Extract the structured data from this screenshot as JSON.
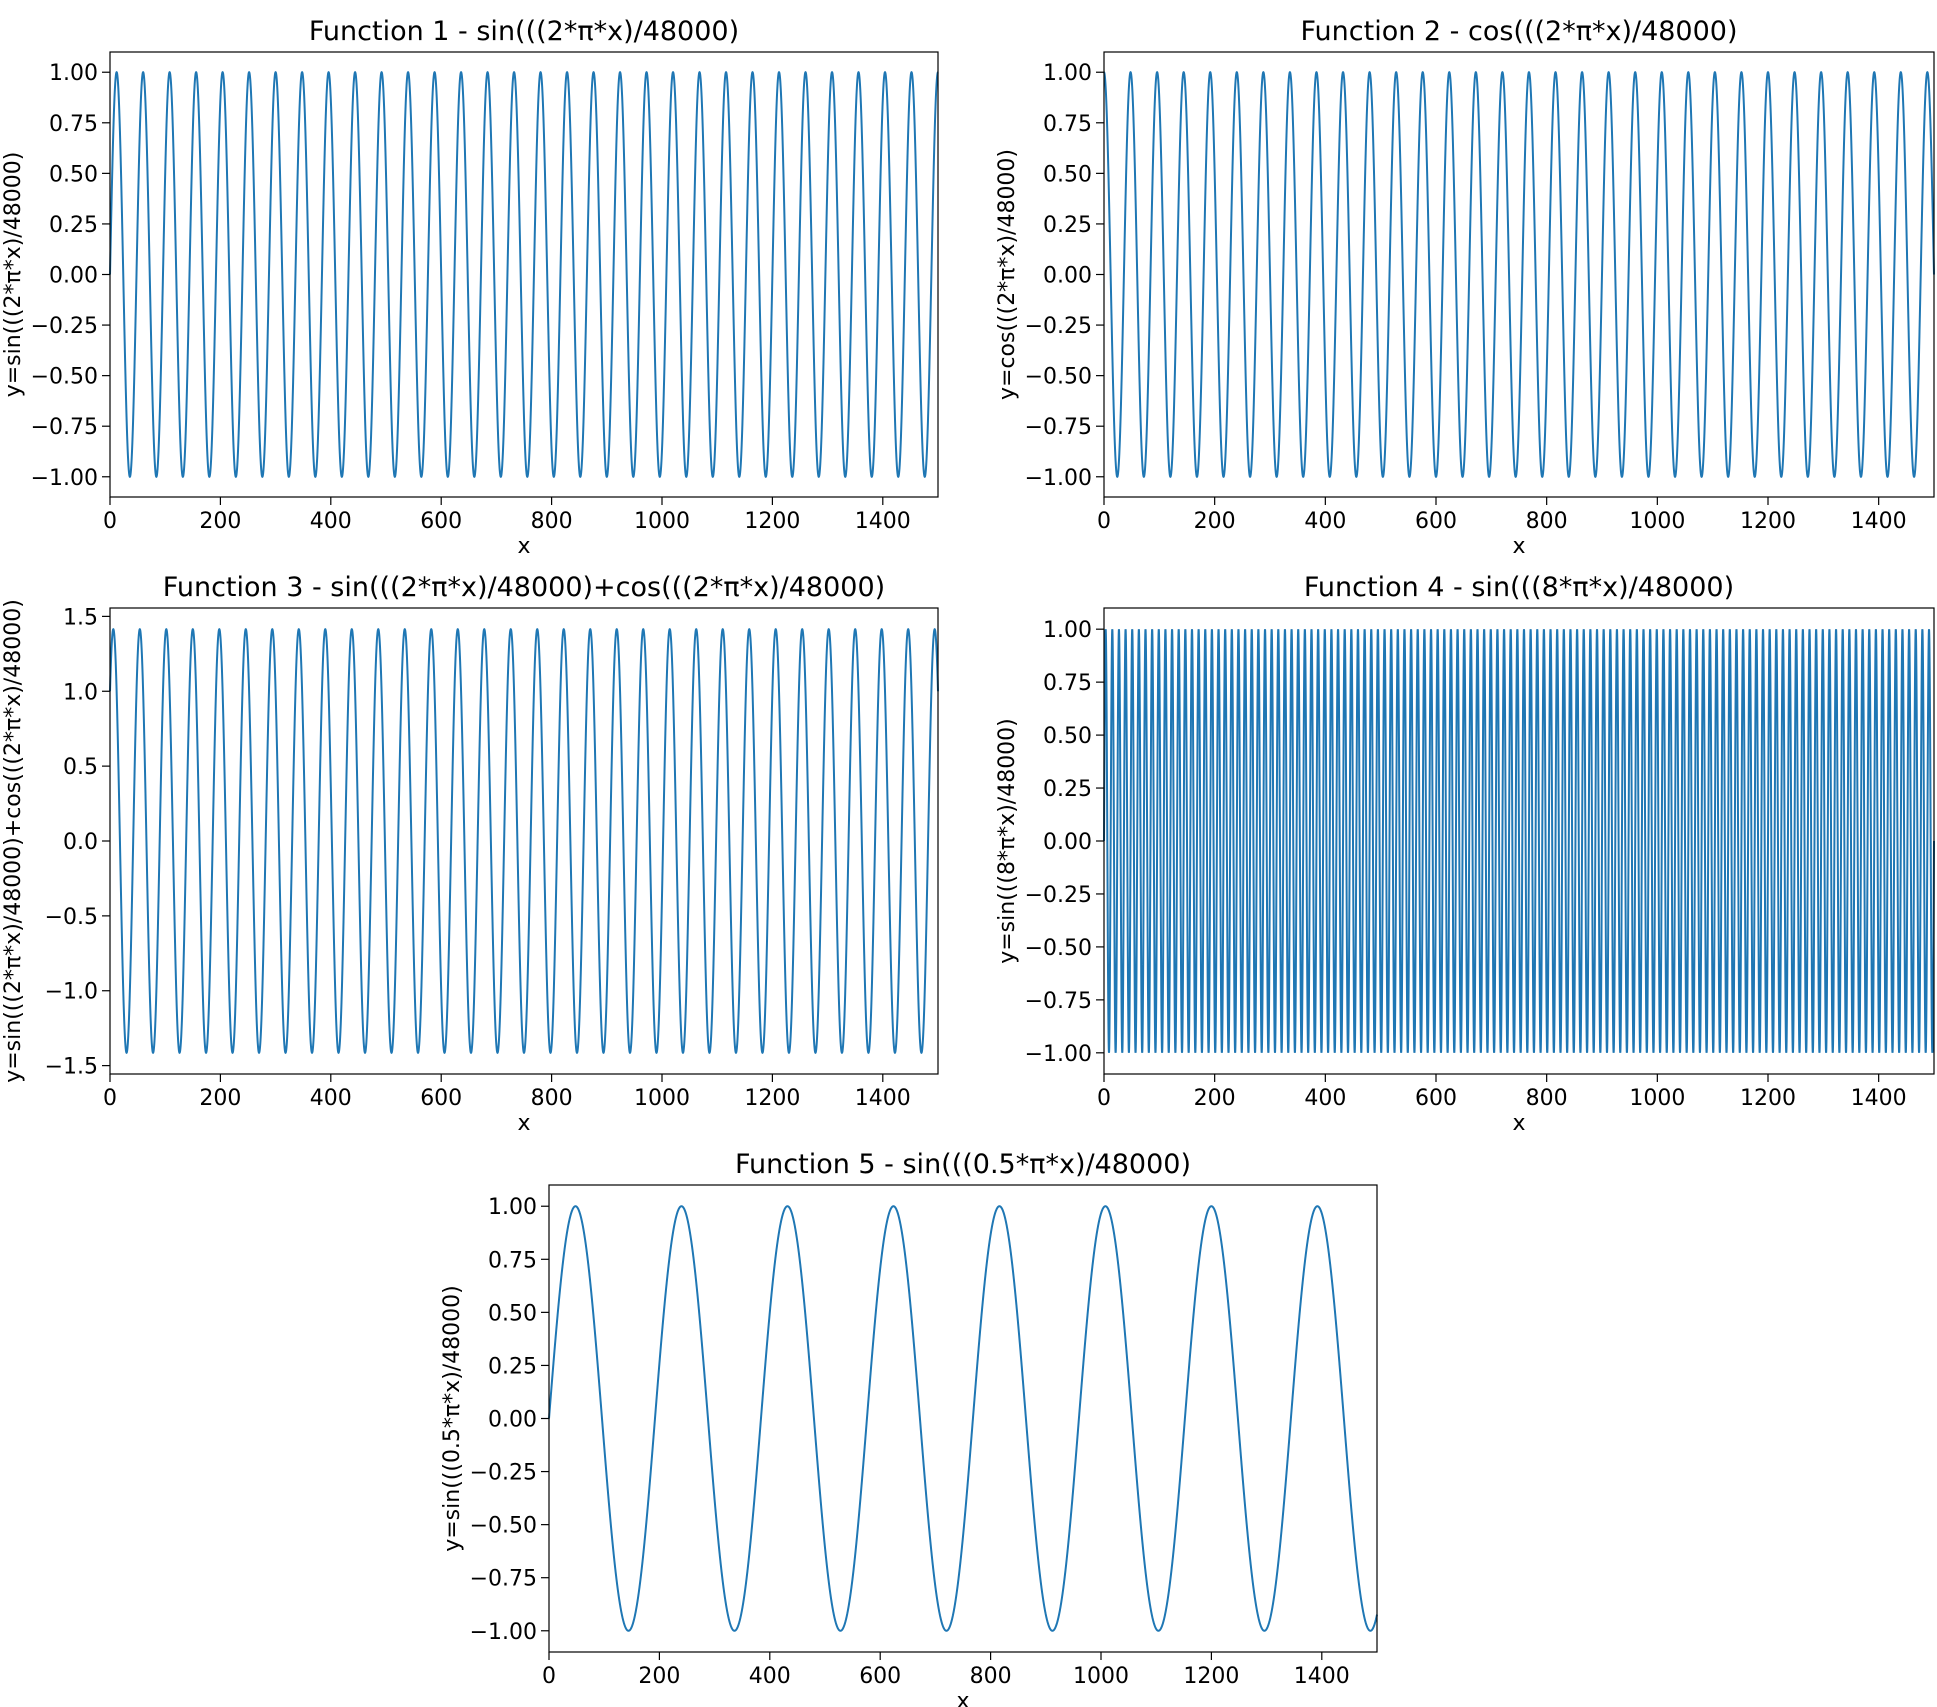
{
  "chart_data": [
    {
      "type": "line",
      "title": "Function 1 - sin(((2*π*x)/48000)",
      "xlabel": "x",
      "ylabel": "y=sin(((2*π*x)/48000)",
      "xlim": [
        0,
        1500
      ],
      "ylim": [
        -1.1,
        1.1
      ],
      "xticks": [
        0,
        200,
        400,
        600,
        800,
        1000,
        1200,
        1400
      ],
      "xtick_labels": [
        "0",
        "200",
        "400",
        "600",
        "800",
        "1000",
        "1200",
        "1400"
      ],
      "yticks": [
        1.0,
        0.75,
        0.5,
        0.25,
        0.0,
        -0.25,
        -0.5,
        -0.75,
        -1.0
      ],
      "ytick_labels": [
        "1.00",
        "0.75",
        "0.50",
        "0.25",
        "0.00",
        "−0.25",
        "−0.50",
        "−0.75",
        "−1.00"
      ],
      "series": [
        {
          "function": "sin",
          "amplitude": 1,
          "period_x": 48,
          "x_range": [
            0,
            1500
          ],
          "color": "#1f77b4"
        }
      ]
    },
    {
      "type": "line",
      "title": "Function 2 - cos(((2*π*x)/48000)",
      "xlabel": "x",
      "ylabel": "y=cos(((2*π*x)/48000)",
      "xlim": [
        0,
        1500
      ],
      "ylim": [
        -1.1,
        1.1
      ],
      "xticks": [
        0,
        200,
        400,
        600,
        800,
        1000,
        1200,
        1400
      ],
      "xtick_labels": [
        "0",
        "200",
        "400",
        "600",
        "800",
        "1000",
        "1200",
        "1400"
      ],
      "yticks": [
        1.0,
        0.75,
        0.5,
        0.25,
        0.0,
        -0.25,
        -0.5,
        -0.75,
        -1.0
      ],
      "ytick_labels": [
        "1.00",
        "0.75",
        "0.50",
        "0.25",
        "0.00",
        "−0.25",
        "−0.50",
        "−0.75",
        "−1.00"
      ],
      "series": [
        {
          "function": "cos",
          "amplitude": 1,
          "period_x": 48,
          "x_range": [
            0,
            1500
          ],
          "color": "#1f77b4"
        }
      ]
    },
    {
      "type": "line",
      "title": "Function 3 - sin(((2*π*x)/48000)+cos(((2*π*x)/48000)",
      "xlabel": "x",
      "ylabel": "y=sin(((2*π*x)/48000)+cos(((2*π*x)/48000)",
      "xlim": [
        0,
        1500
      ],
      "ylim": [
        -1.556,
        1.556
      ],
      "xticks": [
        0,
        200,
        400,
        600,
        800,
        1000,
        1200,
        1400
      ],
      "xtick_labels": [
        "0",
        "200",
        "400",
        "600",
        "800",
        "1000",
        "1200",
        "1400"
      ],
      "yticks": [
        1.5,
        1.0,
        0.5,
        0.0,
        -0.5,
        -1.0,
        -1.5
      ],
      "ytick_labels": [
        "1.5",
        "1.0",
        "0.5",
        "0.0",
        "−0.5",
        "−1.0",
        "−1.5"
      ],
      "series": [
        {
          "function": "sin+cos",
          "amplitude": 1.414,
          "period_x": 48,
          "x_range": [
            0,
            1500
          ],
          "color": "#1f77b4"
        }
      ]
    },
    {
      "type": "line",
      "title": "Function 4 - sin(((8*π*x)/48000)",
      "xlabel": "x",
      "ylabel": "y=sin(((8*π*x)/48000)",
      "xlim": [
        0,
        1500
      ],
      "ylim": [
        -1.1,
        1.1
      ],
      "xticks": [
        0,
        200,
        400,
        600,
        800,
        1000,
        1200,
        1400
      ],
      "xtick_labels": [
        "0",
        "200",
        "400",
        "600",
        "800",
        "1000",
        "1200",
        "1400"
      ],
      "yticks": [
        1.0,
        0.75,
        0.5,
        0.25,
        0.0,
        -0.25,
        -0.5,
        -0.75,
        -1.0
      ],
      "ytick_labels": [
        "1.00",
        "0.75",
        "0.50",
        "0.25",
        "0.00",
        "−0.25",
        "−0.50",
        "−0.75",
        "−1.00"
      ],
      "series": [
        {
          "function": "sin",
          "amplitude": 1,
          "period_x": 12,
          "x_range": [
            0,
            1500
          ],
          "color": "#1f77b4"
        }
      ]
    },
    {
      "type": "line",
      "title": "Function 5 - sin(((0.5*π*x)/48000)",
      "xlabel": "x",
      "ylabel": "y=sin(((0.5*π*x)/48000)",
      "xlim": [
        0,
        1500
      ],
      "ylim": [
        -1.1,
        1.1
      ],
      "xticks": [
        0,
        200,
        400,
        600,
        800,
        1000,
        1200,
        1400
      ],
      "xtick_labels": [
        "0",
        "200",
        "400",
        "600",
        "800",
        "1000",
        "1200",
        "1400"
      ],
      "yticks": [
        1.0,
        0.75,
        0.5,
        0.25,
        0.0,
        -0.25,
        -0.5,
        -0.75,
        -1.0
      ],
      "ytick_labels": [
        "1.00",
        "0.75",
        "0.50",
        "0.25",
        "0.00",
        "−0.25",
        "−0.50",
        "−0.75",
        "−1.00"
      ],
      "series": [
        {
          "function": "sin",
          "amplitude": 1,
          "period_x": 192,
          "x_range": [
            0,
            1500
          ],
          "color": "#1f77b4"
        }
      ]
    }
  ]
}
